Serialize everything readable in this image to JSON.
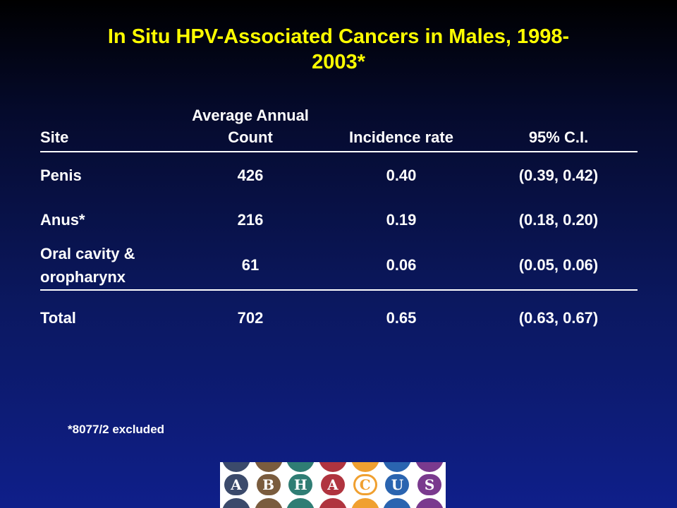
{
  "title": {
    "line1": "In Situ HPV-Associated Cancers in Males, 1998-",
    "line2": "2003*"
  },
  "table": {
    "headers": {
      "site": "Site",
      "count_line1": "Average Annual",
      "count_line2": "Count",
      "incidence": "Incidence rate",
      "ci": "95% C.I."
    },
    "rows": [
      {
        "site": "Penis",
        "count": "426",
        "incidence": "0.40",
        "ci": "(0.39, 0.42)"
      },
      {
        "site": "Anus*",
        "count": "216",
        "incidence": "0.19",
        "ci": "(0.18, 0.20)"
      },
      {
        "site_line1": "Oral cavity &",
        "site_line2": "oropharynx",
        "count": "61",
        "incidence": "0.06",
        "ci": "(0.05, 0.06)"
      }
    ],
    "total": {
      "site": "Total",
      "count": "702",
      "incidence": "0.65",
      "ci": "(0.63, 0.67)"
    }
  },
  "footnote": "*8077/2 excluded",
  "logo": {
    "letters": [
      {
        "char": "A",
        "color": "#3b4a6b"
      },
      {
        "char": "B",
        "color": "#7a5c3e"
      },
      {
        "char": "H",
        "color": "#2f7d74"
      },
      {
        "char": "A",
        "color": "#b0343f"
      },
      {
        "char": "C",
        "color": "#f0a030"
      },
      {
        "char": "U",
        "color": "#2a64b0"
      },
      {
        "char": "S",
        "color": "#7a3a8e"
      }
    ]
  }
}
